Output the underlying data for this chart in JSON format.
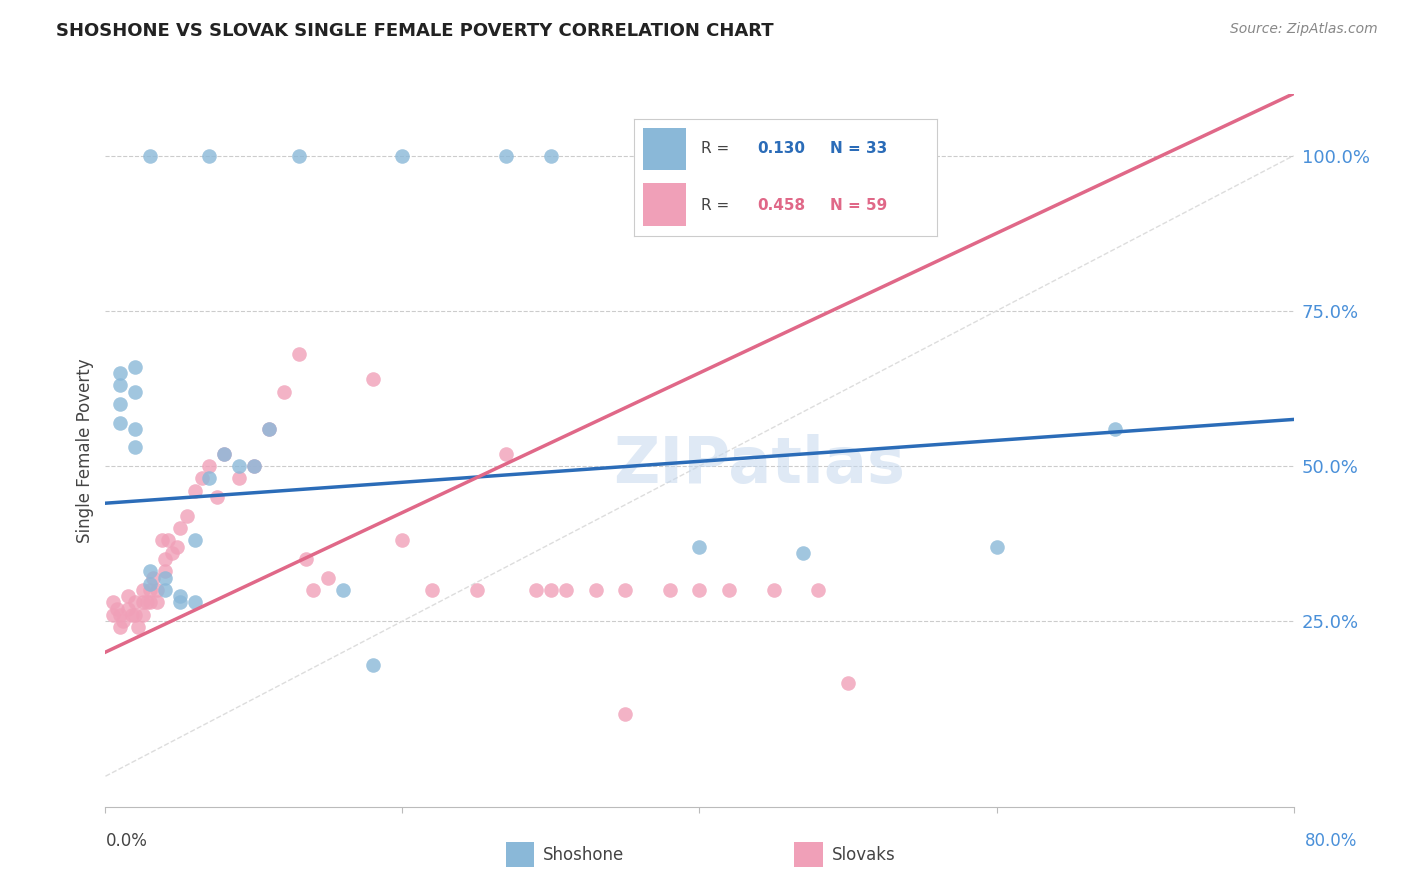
{
  "title": "SHOSHONE VS SLOVAK SINGLE FEMALE POVERTY CORRELATION CHART",
  "source": "Source: ZipAtlas.com",
  "ylabel": "Single Female Poverty",
  "ytick_labels": [
    "25.0%",
    "50.0%",
    "75.0%",
    "100.0%"
  ],
  "ytick_values": [
    0.25,
    0.5,
    0.75,
    1.0
  ],
  "xtick_values": [
    0.0,
    0.2,
    0.4,
    0.6,
    0.8
  ],
  "xlim": [
    0.0,
    0.8
  ],
  "ylim": [
    -0.05,
    1.1
  ],
  "shoshone_R": 0.13,
  "shoshone_N": 33,
  "slovak_R": 0.458,
  "slovak_N": 59,
  "shoshone_color": "#8ab8d8",
  "slovak_color": "#f0a0b8",
  "shoshone_line_color": "#2b6cb8",
  "slovak_line_color": "#e06888",
  "diagonal_color": "#cccccc",
  "background_color": "#ffffff",
  "grid_color": "#cccccc",
  "watermark": "ZIPatlas",
  "shoshone_line_x0": 0.0,
  "shoshone_line_y0": 0.44,
  "shoshone_line_x1": 0.8,
  "shoshone_line_y1": 0.575,
  "slovak_line_x0": 0.0,
  "slovak_line_y0": 0.2,
  "slovak_line_x1": 0.8,
  "slovak_line_y1": 1.1,
  "shoshone_x": [
    0.03,
    0.07,
    0.13,
    0.2,
    0.27,
    0.3,
    0.01,
    0.01,
    0.01,
    0.01,
    0.02,
    0.02,
    0.02,
    0.02,
    0.03,
    0.03,
    0.04,
    0.04,
    0.05,
    0.05,
    0.06,
    0.06,
    0.07,
    0.08,
    0.09,
    0.1,
    0.11,
    0.16,
    0.18,
    0.4,
    0.47,
    0.6,
    0.68
  ],
  "shoshone_y": [
    1.0,
    1.0,
    1.0,
    1.0,
    1.0,
    1.0,
    0.63,
    0.65,
    0.6,
    0.57,
    0.62,
    0.66,
    0.56,
    0.53,
    0.33,
    0.31,
    0.32,
    0.3,
    0.28,
    0.29,
    0.38,
    0.28,
    0.48,
    0.52,
    0.5,
    0.5,
    0.56,
    0.3,
    0.18,
    0.37,
    0.36,
    0.37,
    0.56
  ],
  "slovak_x": [
    0.005,
    0.005,
    0.008,
    0.01,
    0.01,
    0.012,
    0.015,
    0.015,
    0.018,
    0.02,
    0.02,
    0.022,
    0.025,
    0.025,
    0.025,
    0.028,
    0.03,
    0.03,
    0.032,
    0.035,
    0.035,
    0.038,
    0.04,
    0.04,
    0.042,
    0.045,
    0.048,
    0.05,
    0.055,
    0.06,
    0.065,
    0.07,
    0.075,
    0.08,
    0.09,
    0.1,
    0.11,
    0.12,
    0.13,
    0.135,
    0.14,
    0.15,
    0.18,
    0.2,
    0.22,
    0.25,
    0.27,
    0.29,
    0.3,
    0.31,
    0.33,
    0.35,
    0.38,
    0.4,
    0.42,
    0.45,
    0.48,
    0.5,
    0.35
  ],
  "slovak_y": [
    0.28,
    0.26,
    0.27,
    0.26,
    0.24,
    0.25,
    0.29,
    0.27,
    0.26,
    0.28,
    0.26,
    0.24,
    0.3,
    0.28,
    0.26,
    0.28,
    0.3,
    0.28,
    0.32,
    0.28,
    0.3,
    0.38,
    0.33,
    0.35,
    0.38,
    0.36,
    0.37,
    0.4,
    0.42,
    0.46,
    0.48,
    0.5,
    0.45,
    0.52,
    0.48,
    0.5,
    0.56,
    0.62,
    0.68,
    0.35,
    0.3,
    0.32,
    0.64,
    0.38,
    0.3,
    0.3,
    0.52,
    0.3,
    0.3,
    0.3,
    0.3,
    0.3,
    0.3,
    0.3,
    0.3,
    0.3,
    0.3,
    0.15,
    0.1
  ]
}
